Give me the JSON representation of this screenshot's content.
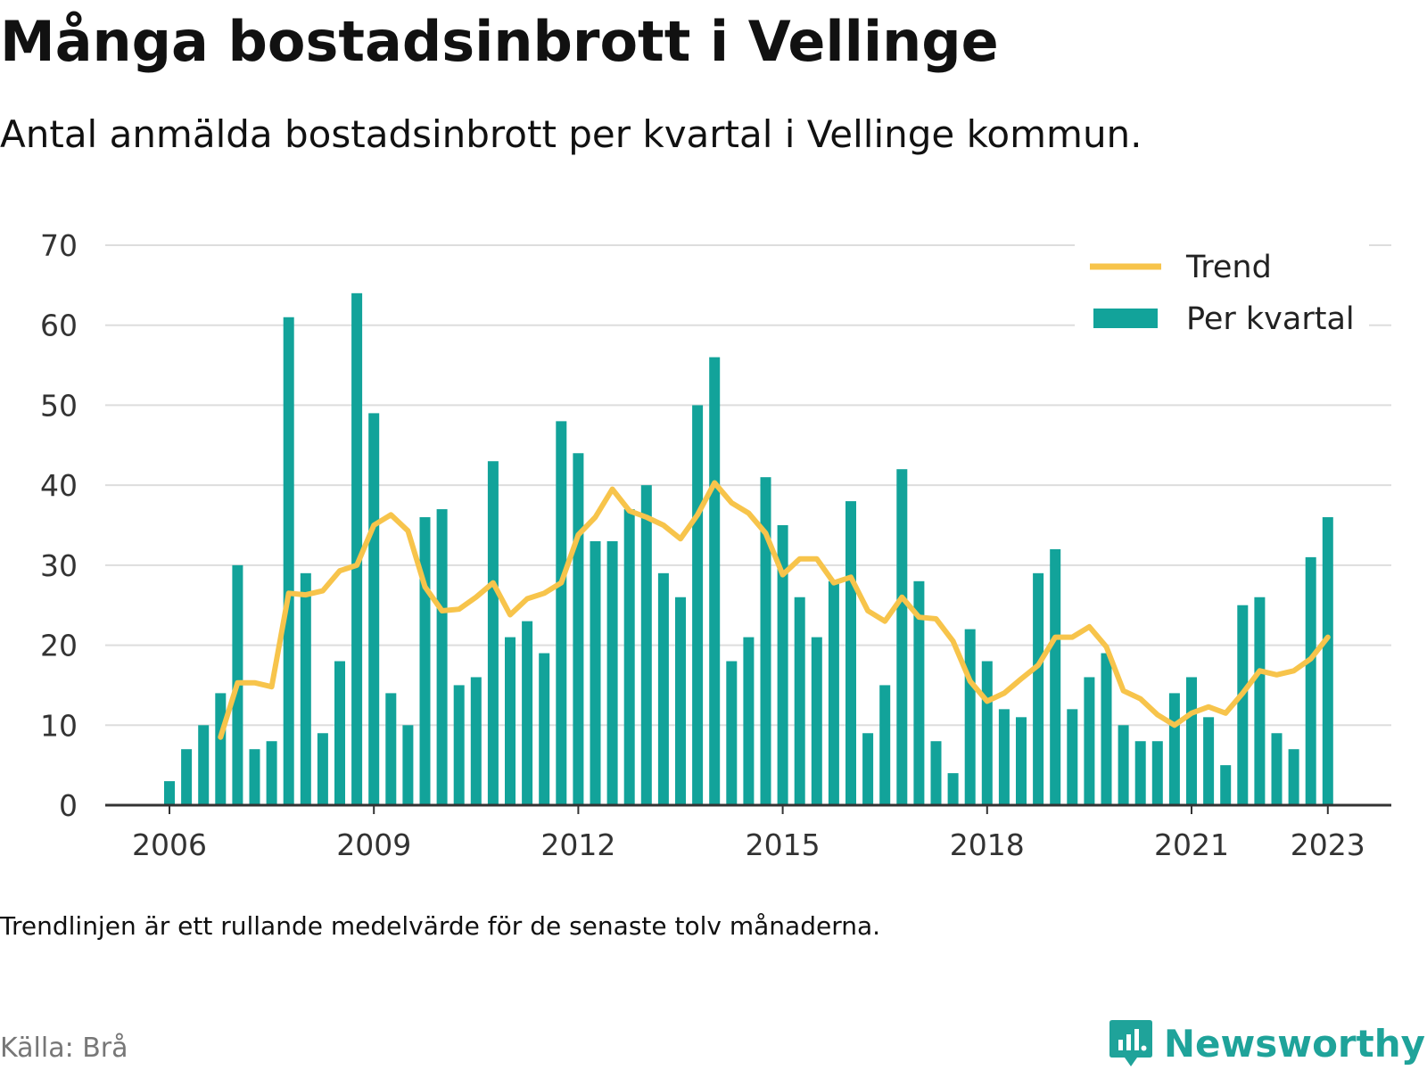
{
  "title": "Många bostadsinbrott i Vellinge",
  "subtitle": "Antal anmälda bostadsinbrott per kvartal i Vellinge kommun.",
  "note": "Trendlinjen är ett rullande medelvärde för de senaste tolv månaderna.",
  "source": "Källa: Brå",
  "brand": {
    "name": "Newsworthy",
    "icon": "newsworthy-logo-icon"
  },
  "colors": {
    "bars": "#12a39a",
    "trend": "#f7c44b",
    "grid": "#dddddd",
    "axis": "#333333",
    "text": "#333333"
  },
  "chart_data": {
    "type": "bar",
    "ylim": [
      0,
      70
    ],
    "yticks": [
      "0",
      "10",
      "20",
      "30",
      "40",
      "50",
      "60",
      "70"
    ],
    "xticks": [
      {
        "label": "2006",
        "quarter_index": 0
      },
      {
        "label": "2009",
        "quarter_index": 12
      },
      {
        "label": "2012",
        "quarter_index": 24
      },
      {
        "label": "2015",
        "quarter_index": 36
      },
      {
        "label": "2018",
        "quarter_index": 48
      },
      {
        "label": "2021",
        "quarter_index": 60
      },
      {
        "label": "2023",
        "quarter_index": 68
      }
    ],
    "grid": true,
    "legend": "top-right",
    "series": [
      {
        "name": "Per kvartal",
        "type": "bar",
        "values": [
          3,
          7,
          10,
          14,
          30,
          7,
          8,
          61,
          29,
          9,
          18,
          64,
          49,
          14,
          10,
          36,
          37,
          15,
          16,
          43,
          21,
          23,
          19,
          48,
          44,
          33,
          33,
          37,
          40,
          29,
          26,
          50,
          56,
          18,
          21,
          41,
          35,
          26,
          21,
          28,
          38,
          9,
          15,
          42,
          28,
          8,
          4,
          22,
          18,
          12,
          11,
          29,
          32,
          12,
          16,
          19,
          10,
          8,
          8,
          14,
          16,
          11,
          5,
          25,
          26,
          9,
          7,
          31,
          36
        ]
      },
      {
        "name": "Trend",
        "type": "line",
        "start_index": 3,
        "values": [
          8.5,
          15.3,
          15.3,
          14.8,
          26.5,
          26.3,
          26.8,
          29.3,
          30.0,
          35.0,
          36.3,
          34.3,
          27.3,
          24.3,
          24.5,
          26.0,
          27.8,
          23.8,
          25.8,
          26.5,
          27.8,
          33.8,
          36.0,
          39.5,
          36.8,
          36.0,
          35.0,
          33.3,
          36.3,
          40.3,
          37.8,
          36.5,
          34.0,
          28.8,
          30.8,
          30.8,
          27.8,
          28.5,
          24.3,
          23.0,
          26.0,
          23.5,
          23.3,
          20.5,
          15.5,
          13.0,
          14.0,
          15.8,
          17.5,
          21.0,
          21.0,
          22.3,
          19.8,
          14.3,
          13.3,
          11.3,
          10.0,
          11.5,
          12.3,
          11.5,
          14.0,
          16.8,
          16.3,
          16.8,
          18.3,
          21.0
        ]
      }
    ]
  }
}
